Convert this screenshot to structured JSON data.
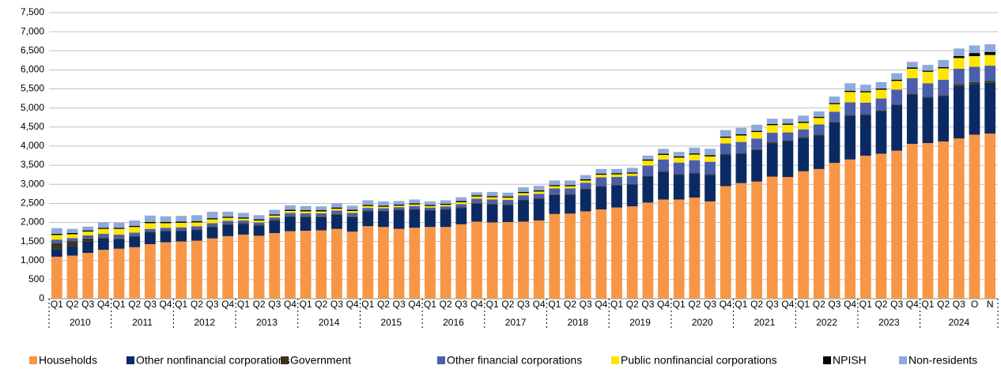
{
  "chart_data": {
    "type": "stacked_bar",
    "categories": [
      "Q1",
      "Q2",
      "Q3",
      "Q4",
      "Q1",
      "Q2",
      "Q3",
      "Q4",
      "Q1",
      "Q2",
      "Q3",
      "Q4",
      "Q1",
      "Q2",
      "Q3",
      "Q4",
      "Q1",
      "Q2",
      "Q3",
      "Q4",
      "Q1",
      "Q2",
      "Q3",
      "Q4",
      "Q1",
      "Q2",
      "Q3",
      "Q4",
      "Q1",
      "Q2",
      "Q3",
      "Q4",
      "Q1",
      "Q2",
      "Q3",
      "Q4",
      "Q1",
      "Q2",
      "Q3",
      "Q4",
      "Q1",
      "Q2",
      "Q3",
      "Q4",
      "Q1",
      "Q2",
      "Q3",
      "Q4",
      "Q1",
      "Q2",
      "Q3",
      "Q4",
      "Q1",
      "Q2",
      "Q3",
      "Q4",
      "Q1",
      "Q2",
      "Q3",
      "O",
      "N"
    ],
    "years": [
      "2010",
      "2011",
      "2012",
      "2013",
      "2014",
      "2015",
      "2016",
      "2017",
      "2018",
      "2019",
      "2020",
      "2021",
      "2022",
      "2023",
      "2024"
    ],
    "series": [
      {
        "name": "Households",
        "color": "#f79646",
        "values": [
          1100,
          1130,
          1200,
          1280,
          1310,
          1350,
          1430,
          1480,
          1500,
          1520,
          1580,
          1640,
          1680,
          1650,
          1720,
          1770,
          1780,
          1790,
          1830,
          1760,
          1900,
          1880,
          1830,
          1860,
          1880,
          1880,
          1950,
          2020,
          2000,
          2010,
          2020,
          2050,
          2220,
          2230,
          2290,
          2340,
          2390,
          2420,
          2520,
          2600,
          2600,
          2650,
          2550,
          2950,
          3030,
          3070,
          3200,
          3190,
          3340,
          3400,
          3560,
          3650,
          3750,
          3800,
          3880,
          4060,
          4080,
          4120,
          4200,
          4300,
          4330
        ]
      },
      {
        "name": "Other nonfinancial corporations",
        "color": "#0b2a63",
        "values": [
          200,
          250,
          300,
          300,
          250,
          280,
          300,
          280,
          270,
          280,
          300,
          300,
          280,
          270,
          320,
          380,
          360,
          350,
          370,
          380,
          380,
          400,
          480,
          470,
          420,
          450,
          430,
          470,
          470,
          450,
          550,
          560,
          500,
          500,
          570,
          600,
          580,
          570,
          680,
          730,
          650,
          640,
          700,
          820,
          770,
          830,
          880,
          950,
          880,
          880,
          1050,
          1150,
          1070,
          1110,
          1200,
          1300,
          1200,
          1200,
          1380,
          1330,
          1330
        ]
      },
      {
        "name": "Government",
        "color": "#3d3517",
        "values": [
          150,
          130,
          80,
          30,
          20,
          20,
          20,
          20,
          20,
          20,
          20,
          20,
          20,
          20,
          20,
          20,
          20,
          20,
          20,
          20,
          20,
          20,
          20,
          20,
          20,
          20,
          20,
          20,
          20,
          20,
          20,
          20,
          20,
          20,
          20,
          20,
          20,
          20,
          20,
          20,
          20,
          20,
          20,
          20,
          20,
          20,
          20,
          20,
          20,
          20,
          20,
          20,
          20,
          20,
          20,
          20,
          20,
          20,
          50,
          50,
          50
        ]
      },
      {
        "name": "Other financial corporations",
        "color": "#4a5eab",
        "values": [
          100,
          80,
          80,
          90,
          100,
          80,
          80,
          80,
          80,
          80,
          80,
          80,
          70,
          60,
          70,
          80,
          80,
          80,
          90,
          90,
          80,
          70,
          70,
          80,
          70,
          70,
          80,
          110,
          110,
          110,
          120,
          120,
          150,
          140,
          160,
          220,
          200,
          210,
          270,
          300,
          300,
          320,
          320,
          280,
          290,
          280,
          250,
          200,
          200,
          270,
          270,
          330,
          300,
          320,
          380,
          400,
          350,
          400,
          400,
          400,
          400
        ]
      },
      {
        "name": "Public nonfinancial corporations",
        "color": "#ffe600",
        "values": [
          120,
          100,
          100,
          130,
          150,
          150,
          150,
          120,
          120,
          100,
          100,
          80,
          50,
          50,
          50,
          50,
          50,
          50,
          50,
          50,
          50,
          40,
          40,
          40,
          40,
          40,
          50,
          60,
          60,
          60,
          60,
          60,
          60,
          60,
          60,
          70,
          70,
          60,
          130,
          120,
          130,
          150,
          140,
          150,
          170,
          170,
          200,
          200,
          170,
          170,
          200,
          270,
          270,
          230,
          230,
          250,
          300,
          300,
          280,
          280,
          280
        ]
      },
      {
        "name": "NPISH",
        "color": "#000000",
        "values": [
          30,
          30,
          30,
          30,
          30,
          30,
          30,
          30,
          30,
          30,
          30,
          30,
          30,
          30,
          30,
          30,
          30,
          30,
          30,
          30,
          30,
          30,
          30,
          30,
          30,
          30,
          30,
          30,
          30,
          30,
          30,
          30,
          30,
          30,
          30,
          30,
          30,
          30,
          30,
          30,
          30,
          30,
          30,
          30,
          30,
          30,
          30,
          30,
          30,
          30,
          30,
          30,
          30,
          30,
          30,
          30,
          30,
          30,
          50,
          80,
          80
        ]
      },
      {
        "name": "Non-residents",
        "color": "#8eaadb",
        "values": [
          150,
          110,
          100,
          140,
          130,
          140,
          170,
          150,
          150,
          160,
          170,
          130,
          120,
          110,
          120,
          120,
          110,
          100,
          110,
          110,
          120,
          110,
          90,
          100,
          90,
          90,
          100,
          80,
          110,
          100,
          120,
          120,
          120,
          120,
          110,
          120,
          110,
          120,
          100,
          130,
          120,
          150,
          170,
          170,
          170,
          160,
          140,
          130,
          160,
          140,
          170,
          200,
          170,
          170,
          170,
          150,
          150,
          190,
          200,
          200,
          200
        ]
      }
    ],
    "ylim": [
      0,
      7500
    ],
    "yticks": [
      0,
      500,
      {
        "value": 1000,
        "label": "1,000"
      },
      {
        "value": 1500,
        "label": "1,500"
      },
      {
        "value": 2000,
        "label": "2,000"
      },
      {
        "value": 2500,
        "label": "2,500"
      },
      {
        "value": 3000,
        "label": "3,000"
      },
      {
        "value": 3500,
        "label": "3,500"
      },
      {
        "value": 4000,
        "label": "4,000"
      },
      {
        "value": 4500,
        "label": "4,500"
      },
      {
        "value": 5000,
        "label": "5,000"
      },
      {
        "value": 5500,
        "label": "5,500"
      },
      {
        "value": 6000,
        "label": "6,000"
      },
      {
        "value": 6500,
        "label": "6,500"
      },
      {
        "value": 7000,
        "label": "7,000"
      },
      {
        "value": 7500,
        "label": "7,500"
      }
    ],
    "grid": true,
    "legend": "bottom"
  }
}
